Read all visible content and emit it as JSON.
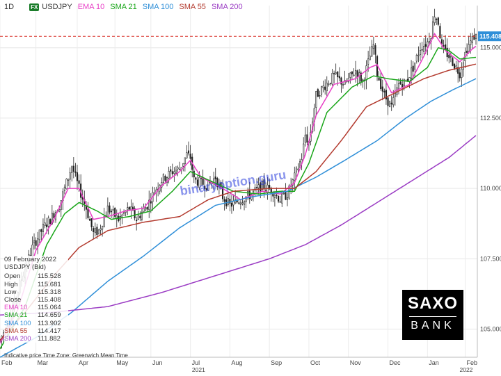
{
  "header": {
    "timeframe": "1D",
    "fx_badge": "FX",
    "symbol": "USDJPY",
    "indicators": [
      {
        "label": "EMA 10",
        "color": "#e83ec6"
      },
      {
        "label": "SMA 21",
        "color": "#19a619"
      },
      {
        "label": "SMA 100",
        "color": "#2f8fd8"
      },
      {
        "label": "SMA 55",
        "color": "#b33a2e"
      },
      {
        "label": "SMA 200",
        "color": "#9b3cc4"
      }
    ]
  },
  "info_panel": {
    "date": "09 February 2022",
    "symbol_line": "USDJPY (Bid)",
    "rows": [
      {
        "label": "Open",
        "value": "115.528",
        "color": "#333333"
      },
      {
        "label": "High",
        "value": "115.681",
        "color": "#333333"
      },
      {
        "label": "Low",
        "value": "115.318",
        "color": "#333333"
      },
      {
        "label": "Close",
        "value": "115.408",
        "color": "#333333"
      },
      {
        "label": "EMA 10",
        "value": "115.064",
        "color": "#e83ec6"
      },
      {
        "label": "SMA 21",
        "value": "114.659",
        "color": "#19a619"
      },
      {
        "label": "SMA 100",
        "value": "113.902",
        "color": "#2f8fd8"
      },
      {
        "label": "SMA 55",
        "value": "114.417",
        "color": "#b33a2e"
      },
      {
        "label": "SMA 200",
        "value": "111.882",
        "color": "#9b3cc4"
      }
    ]
  },
  "footer_note": "Indicative price    Time Zone: Greenwich Mean Time",
  "branding": {
    "line1": "SAXO",
    "line2": "BANK"
  },
  "watermark": "binaryoption.guru",
  "chart_data": {
    "type": "line",
    "title": "",
    "ylim": [
      104.0,
      116.5
    ],
    "y_ticks": [
      "105.000",
      "107.500",
      "110.000",
      "112.500",
      "115.000"
    ],
    "y_tick_values": [
      105.0,
      107.5,
      110.0,
      112.5,
      115.0
    ],
    "last_price_label": "115.408",
    "last_price": 115.408,
    "x_month_labels": [
      "Feb",
      "Mar",
      "Apr",
      "May",
      "Jun",
      "Jul",
      "Aug",
      "Sep",
      "Oct",
      "Nov",
      "Dec",
      "Jan",
      "Feb"
    ],
    "x_month_index": [
      0,
      20,
      43,
      64,
      84,
      106,
      128,
      150,
      172,
      194,
      216,
      238,
      259
    ],
    "x_year_labels": [
      {
        "label": "2021",
        "index": 110
      },
      {
        "label": "2022",
        "index": 259
      }
    ],
    "n_days": 266,
    "grid": true,
    "price_anchors": [
      [
        0,
        104.6
      ],
      [
        6,
        105.5
      ],
      [
        12,
        106.8
      ],
      [
        18,
        107.9
      ],
      [
        24,
        108.6
      ],
      [
        28,
        108.9
      ],
      [
        33,
        109.4
      ],
      [
        38,
        110.4
      ],
      [
        40,
        110.8
      ],
      [
        44,
        110.0
      ],
      [
        48,
        109.3
      ],
      [
        52,
        108.4
      ],
      [
        55,
        108.5
      ],
      [
        60,
        109.3
      ],
      [
        66,
        108.9
      ],
      [
        72,
        109.3
      ],
      [
        76,
        108.9
      ],
      [
        82,
        109.4
      ],
      [
        86,
        109.9
      ],
      [
        90,
        110.3
      ],
      [
        96,
        110.6
      ],
      [
        100,
        110.7
      ],
      [
        104,
        111.2
      ],
      [
        106,
        111.1
      ],
      [
        108,
        110.3
      ],
      [
        112,
        110.2
      ],
      [
        116,
        110.1
      ],
      [
        120,
        110.4
      ],
      [
        124,
        109.7
      ],
      [
        128,
        109.4
      ],
      [
        134,
        109.6
      ],
      [
        140,
        109.8
      ],
      [
        146,
        110.1
      ],
      [
        152,
        109.9
      ],
      [
        156,
        109.6
      ],
      [
        160,
        109.8
      ],
      [
        164,
        110.4
      ],
      [
        168,
        111.1
      ],
      [
        170,
        111.9
      ],
      [
        172,
        111.6
      ],
      [
        176,
        113.3
      ],
      [
        180,
        113.6
      ],
      [
        186,
        114.0
      ],
      [
        192,
        113.7
      ],
      [
        198,
        114.2
      ],
      [
        202,
        113.8
      ],
      [
        206,
        114.7
      ],
      [
        208,
        115.1
      ],
      [
        210,
        114.1
      ],
      [
        214,
        113.3
      ],
      [
        218,
        112.9
      ],
      [
        222,
        113.7
      ],
      [
        226,
        113.8
      ],
      [
        230,
        114.3
      ],
      [
        234,
        115.0
      ],
      [
        238,
        115.2
      ],
      [
        240,
        115.5
      ],
      [
        242,
        116.2
      ],
      [
        244,
        115.9
      ],
      [
        246,
        115.0
      ],
      [
        250,
        114.7
      ],
      [
        254,
        114.3
      ],
      [
        256,
        114.1
      ],
      [
        258,
        114.6
      ],
      [
        260,
        115.0
      ],
      [
        262,
        115.2
      ],
      [
        264,
        115.4
      ],
      [
        265,
        115.4
      ]
    ],
    "series": [
      {
        "name": "EMA 10",
        "color": "#e83ec6",
        "values": [
          [
            0,
            104.5
          ],
          [
            10,
            105.7
          ],
          [
            20,
            107.8
          ],
          [
            30,
            108.9
          ],
          [
            38,
            110.0
          ],
          [
            44,
            110.0
          ],
          [
            52,
            108.9
          ],
          [
            60,
            109.0
          ],
          [
            70,
            109.2
          ],
          [
            80,
            109.3
          ],
          [
            90,
            110.1
          ],
          [
            100,
            110.6
          ],
          [
            106,
            111.0
          ],
          [
            112,
            110.4
          ],
          [
            124,
            110.0
          ],
          [
            134,
            109.6
          ],
          [
            146,
            109.9
          ],
          [
            156,
            109.8
          ],
          [
            164,
            110.2
          ],
          [
            170,
            111.2
          ],
          [
            176,
            112.6
          ],
          [
            186,
            113.7
          ],
          [
            198,
            113.9
          ],
          [
            206,
            114.3
          ],
          [
            210,
            114.4
          ],
          [
            218,
            113.4
          ],
          [
            228,
            113.7
          ],
          [
            236,
            114.7
          ],
          [
            242,
            115.5
          ],
          [
            248,
            114.9
          ],
          [
            256,
            114.5
          ],
          [
            262,
            114.9
          ],
          [
            265,
            115.06
          ]
        ]
      },
      {
        "name": "SMA 21",
        "color": "#19a619",
        "values": [
          [
            0,
            104.3
          ],
          [
            14,
            105.8
          ],
          [
            26,
            108.0
          ],
          [
            36,
            109.1
          ],
          [
            44,
            109.5
          ],
          [
            54,
            109.2
          ],
          [
            62,
            108.9
          ],
          [
            72,
            109.0
          ],
          [
            84,
            109.2
          ],
          [
            96,
            109.9
          ],
          [
            106,
            110.6
          ],
          [
            116,
            110.3
          ],
          [
            130,
            109.9
          ],
          [
            144,
            109.8
          ],
          [
            156,
            109.9
          ],
          [
            164,
            109.9
          ],
          [
            172,
            110.9
          ],
          [
            182,
            112.7
          ],
          [
            196,
            113.6
          ],
          [
            208,
            114.0
          ],
          [
            216,
            113.9
          ],
          [
            228,
            113.8
          ],
          [
            238,
            114.3
          ],
          [
            244,
            115.0
          ],
          [
            250,
            114.9
          ],
          [
            256,
            114.6
          ],
          [
            265,
            114.66
          ]
        ]
      },
      {
        "name": "SMA 100",
        "color": "#2f8fd8",
        "values": [
          [
            0,
            104.0
          ],
          [
            20,
            104.7
          ],
          [
            40,
            105.6
          ],
          [
            60,
            106.7
          ],
          [
            80,
            107.6
          ],
          [
            100,
            108.6
          ],
          [
            120,
            109.4
          ],
          [
            140,
            109.7
          ],
          [
            160,
            109.9
          ],
          [
            176,
            110.4
          ],
          [
            192,
            111.0
          ],
          [
            210,
            111.7
          ],
          [
            226,
            112.5
          ],
          [
            240,
            113.1
          ],
          [
            252,
            113.5
          ],
          [
            265,
            113.9
          ]
        ]
      },
      {
        "name": "SMA 55",
        "color": "#b33a2e",
        "values": [
          [
            0,
            104.6
          ],
          [
            14,
            105.6
          ],
          [
            30,
            106.9
          ],
          [
            44,
            107.9
          ],
          [
            60,
            108.5
          ],
          [
            80,
            108.8
          ],
          [
            100,
            109.0
          ],
          [
            116,
            109.6
          ],
          [
            130,
            109.9
          ],
          [
            150,
            110.0
          ],
          [
            164,
            110.0
          ],
          [
            176,
            110.6
          ],
          [
            190,
            111.7
          ],
          [
            204,
            112.9
          ],
          [
            220,
            113.4
          ],
          [
            236,
            113.9
          ],
          [
            250,
            114.2
          ],
          [
            265,
            114.42
          ]
        ]
      },
      {
        "name": "SMA 200",
        "color": "#9b3cc4",
        "values": [
          [
            0,
            105.5
          ],
          [
            30,
            105.6
          ],
          [
            60,
            105.8
          ],
          [
            90,
            106.3
          ],
          [
            120,
            106.9
          ],
          [
            150,
            107.5
          ],
          [
            170,
            108.0
          ],
          [
            190,
            108.7
          ],
          [
            210,
            109.5
          ],
          [
            230,
            110.3
          ],
          [
            250,
            111.1
          ],
          [
            265,
            111.88
          ]
        ]
      }
    ]
  }
}
